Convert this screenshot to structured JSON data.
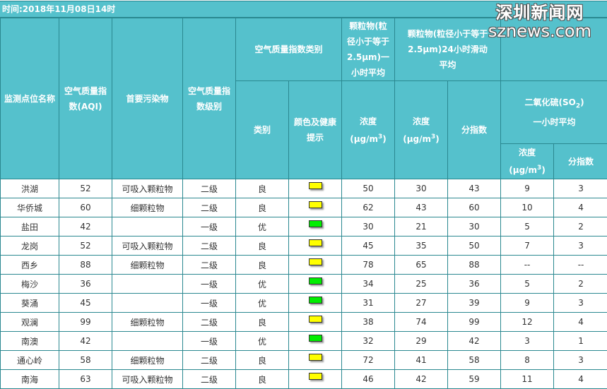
{
  "title": "时间:2018年11月08日14时",
  "watermark": {
    "cn": "深圳新闻网",
    "en": "sznews.com"
  },
  "headers": {
    "station": "监测点位名称",
    "aqi": "空气质量指数(AQI)",
    "primary": "首要污染物",
    "level": "空气质量指数级别",
    "category_group": "空气质量指数类别",
    "category": "类别",
    "color_hint": "颜色及健康提示",
    "pm25_1h": "颗粒物(粒径小于等于2.5μm)一小时平均",
    "pm25_24h": "颗粒物(粒径小于等于2.5μm)24小时滑动平均",
    "so2_title": "二氧化硫(SO",
    "so2_sub": "2",
    "so2_title_end": ")",
    "so2_period": "一小时平均",
    "conc": "浓度",
    "unit": "(μg/m",
    "unit_sup": "3",
    "unit_end": ")",
    "sub_index": "分指数"
  },
  "colors": {
    "良": "#ffff00",
    "优": "#00ee00",
    "header_bg": "#55c1cc",
    "border": "#2a8890"
  },
  "rows": [
    {
      "station": "洪湖",
      "aqi": "52",
      "primary": "可吸入颗粒物",
      "level": "二级",
      "category": "良",
      "pm25_1h": "50",
      "pm25_24h": "30",
      "pm25_idx": "43",
      "so2": "9",
      "so2_idx": "3"
    },
    {
      "station": "华侨城",
      "aqi": "60",
      "primary": "细颗粒物",
      "level": "二级",
      "category": "良",
      "pm25_1h": "62",
      "pm25_24h": "43",
      "pm25_idx": "60",
      "so2": "10",
      "so2_idx": "4"
    },
    {
      "station": "盐田",
      "aqi": "42",
      "primary": "",
      "level": "一级",
      "category": "优",
      "pm25_1h": "30",
      "pm25_24h": "21",
      "pm25_idx": "30",
      "so2": "5",
      "so2_idx": "2"
    },
    {
      "station": "龙岗",
      "aqi": "52",
      "primary": "可吸入颗粒物",
      "level": "二级",
      "category": "良",
      "pm25_1h": "45",
      "pm25_24h": "35",
      "pm25_idx": "50",
      "so2": "7",
      "so2_idx": "3"
    },
    {
      "station": "西乡",
      "aqi": "88",
      "primary": "细颗粒物",
      "level": "二级",
      "category": "良",
      "pm25_1h": "78",
      "pm25_24h": "65",
      "pm25_idx": "88",
      "so2": "--",
      "so2_idx": "--"
    },
    {
      "station": "梅沙",
      "aqi": "36",
      "primary": "",
      "level": "一级",
      "category": "优",
      "pm25_1h": "34",
      "pm25_24h": "25",
      "pm25_idx": "36",
      "so2": "5",
      "so2_idx": "2"
    },
    {
      "station": "葵涌",
      "aqi": "45",
      "primary": "",
      "level": "一级",
      "category": "优",
      "pm25_1h": "31",
      "pm25_24h": "27",
      "pm25_idx": "39",
      "so2": "9",
      "so2_idx": "3"
    },
    {
      "station": "观澜",
      "aqi": "99",
      "primary": "细颗粒物",
      "level": "二级",
      "category": "良",
      "pm25_1h": "38",
      "pm25_24h": "74",
      "pm25_idx": "99",
      "so2": "12",
      "so2_idx": "4"
    },
    {
      "station": "南澳",
      "aqi": "42",
      "primary": "",
      "level": "一级",
      "category": "优",
      "pm25_1h": "32",
      "pm25_24h": "29",
      "pm25_idx": "42",
      "so2": "3",
      "so2_idx": "1"
    },
    {
      "station": "通心岭",
      "aqi": "58",
      "primary": "细颗粒物",
      "level": "二级",
      "category": "良",
      "pm25_1h": "72",
      "pm25_24h": "41",
      "pm25_idx": "58",
      "so2": "8",
      "so2_idx": "3"
    },
    {
      "station": "南海",
      "aqi": "63",
      "primary": "可吸入颗粒物",
      "level": "二级",
      "category": "良",
      "pm25_1h": "46",
      "pm25_24h": "42",
      "pm25_idx": "59",
      "so2": "11",
      "so2_idx": "4"
    }
  ]
}
